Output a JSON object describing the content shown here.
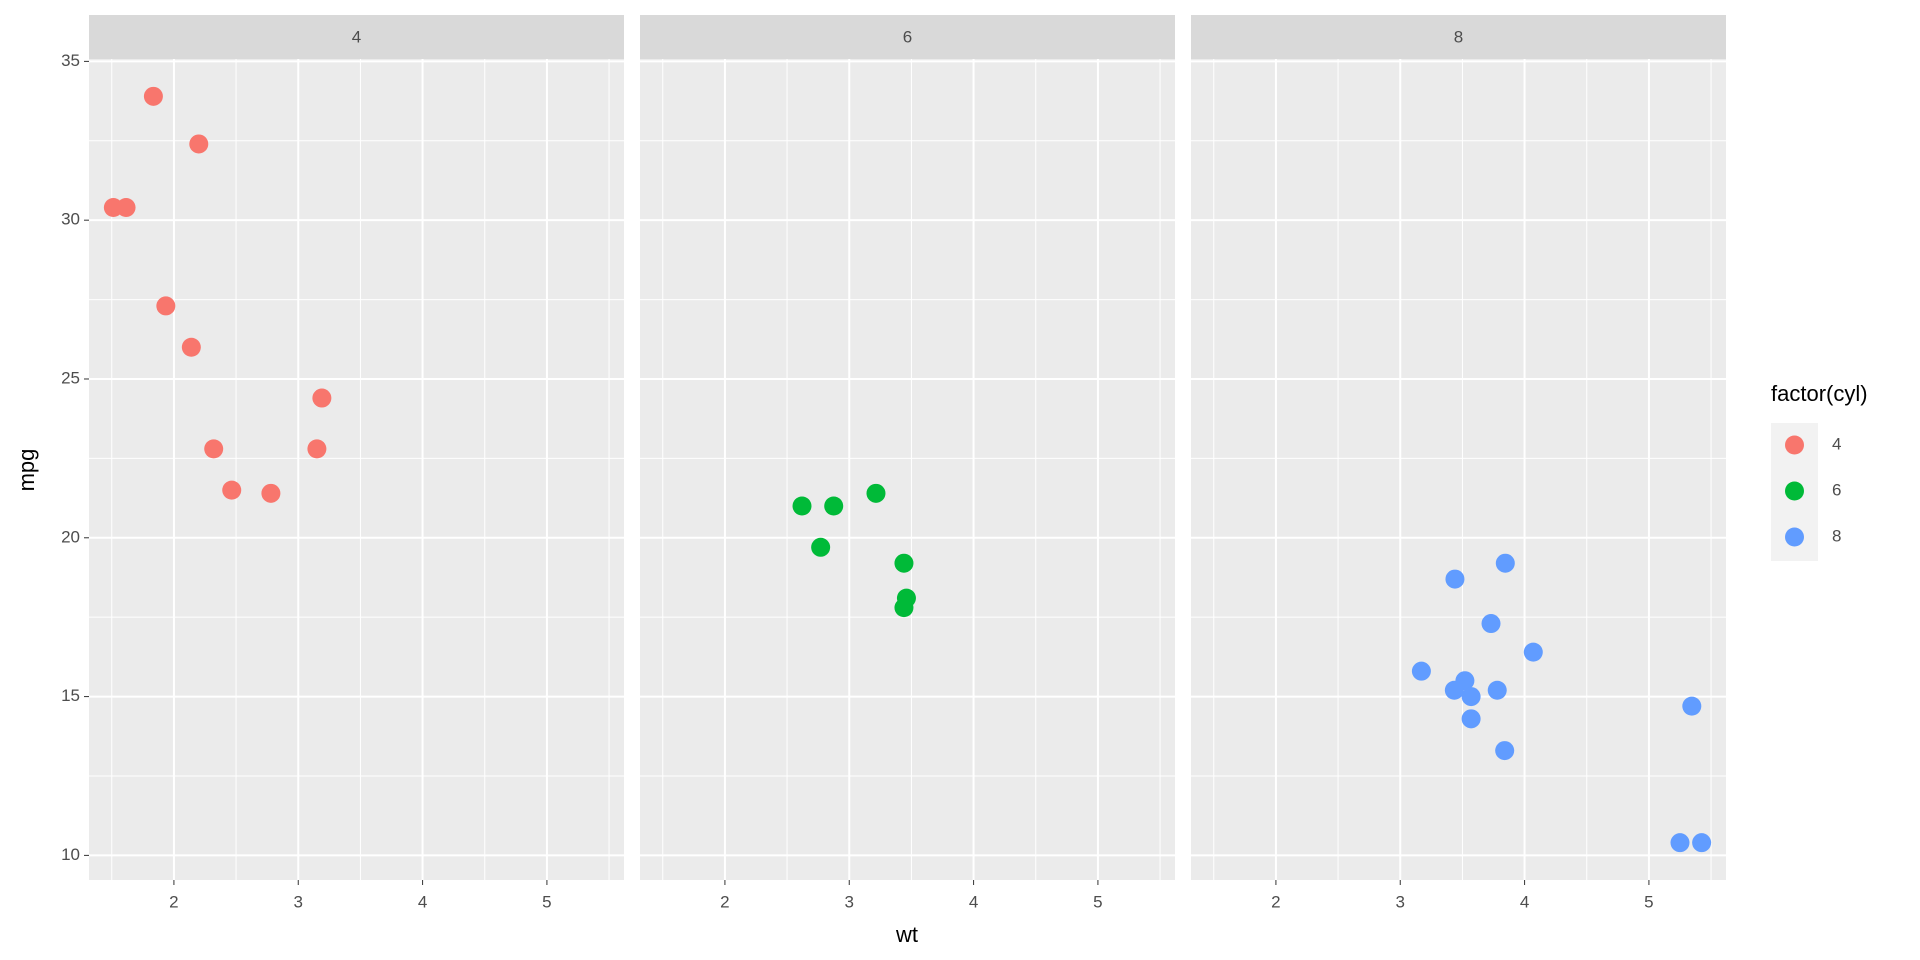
{
  "chart_data": {
    "type": "scatter",
    "xlabel": "wt",
    "ylabel": "mpg",
    "legend_title": "factor(cyl)",
    "grid": true,
    "xlim": [
      1.317,
      5.62
    ],
    "ylim": [
      9.225,
      35.075
    ],
    "xticks": [
      2,
      3,
      4,
      5
    ],
    "yticks": [
      10,
      15,
      20,
      25,
      30,
      35
    ],
    "series": [
      {
        "name": "4",
        "color": "#F8766D",
        "x": [
          2.32,
          3.19,
          3.15,
          2.2,
          1.615,
          1.835,
          2.465,
          1.935,
          2.14,
          1.513,
          2.78
        ],
        "y": [
          22.8,
          24.4,
          22.8,
          32.4,
          30.4,
          33.9,
          21.5,
          27.3,
          26.0,
          30.4,
          21.4
        ]
      },
      {
        "name": "6",
        "color": "#00BA38",
        "x": [
          2.62,
          2.875,
          3.215,
          3.46,
          3.44,
          3.44,
          2.77
        ],
        "y": [
          21.0,
          21.0,
          21.4,
          18.1,
          19.2,
          17.8,
          19.7
        ]
      },
      {
        "name": "8",
        "color": "#619CFF",
        "x": [
          3.44,
          3.57,
          4.07,
          3.73,
          3.78,
          5.25,
          5.424,
          5.345,
          3.52,
          3.435,
          3.84,
          3.845,
          3.17,
          3.57
        ],
        "y": [
          18.7,
          14.3,
          16.4,
          17.3,
          15.2,
          10.4,
          10.4,
          14.7,
          15.5,
          15.2,
          13.3,
          19.2,
          15.8,
          15.0
        ]
      }
    ]
  }
}
